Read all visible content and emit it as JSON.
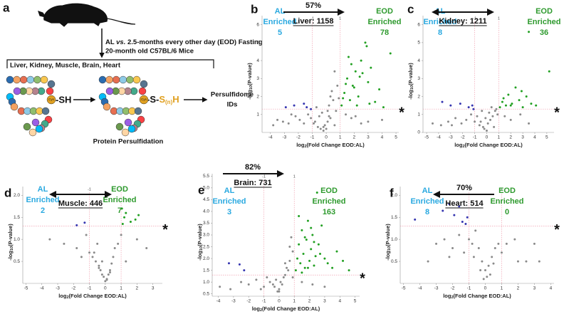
{
  "schematic": {
    "panel": "a",
    "line1_parts": [
      "AL ",
      "vs.",
      " 2.5-months every other day (EOD) Fasting"
    ],
    "line2": "20-month old C57BL/6 Mice",
    "tissues": "Liver, Kidney, Muscle, Brain, Heart",
    "thiol": "-SH",
    "persulfide_parts": [
      "-S-",
      "S",
      "(n)",
      "H"
    ],
    "cys": "Cys",
    "caption": "Protein Persulfidation",
    "output": [
      "Persulfidome",
      "IDs"
    ]
  },
  "chart_data": [
    {
      "type": "scatter",
      "panel": "b",
      "title": "Liver: 1158",
      "percent": "57%",
      "arrow": "right",
      "left_annotation": [
        "AL",
        "Enriched"
      ],
      "left_count": 5,
      "right_annotation": [
        "EOD",
        "Enriched"
      ],
      "right_count": 78,
      "xlabel_parts": [
        "log",
        "2",
        "(Fold Change EOD:AL)"
      ],
      "ylabel_parts": [
        "-log",
        "10",
        "(P-value)"
      ],
      "significance_marker": "*",
      "thresholds": {
        "x": [
          -1,
          1
        ],
        "y": 1.3,
        "color": "#f0a0b0"
      },
      "xlim": [
        -4.6,
        5.2
      ],
      "ylim": [
        0,
        6.5
      ],
      "xticks": [
        -4,
        -3,
        -2,
        -1,
        0,
        1,
        2,
        3,
        4,
        5
      ],
      "yticks": [
        1,
        2,
        3,
        4,
        5,
        6
      ],
      "series": [
        {
          "color": "#8a8a8a",
          "x": [
            -3.8,
            -3.1,
            -2.7,
            -2.2,
            -1.9,
            -1.6,
            -1.3,
            -1.1,
            -0.8,
            -0.6,
            -0.4,
            -0.3,
            -0.2,
            -0.1,
            0,
            0.1,
            0.2,
            0.3,
            0.4,
            0.5,
            0.6,
            0.7,
            0.8,
            0.9,
            -0.5,
            -0.7,
            0.3,
            0.1,
            -2.5,
            -3.5,
            2.1,
            3.0,
            4.0,
            -0.9,
            0.6,
            0.2,
            -0.2,
            1.4,
            1.8,
            2.5
          ],
          "values": [
            0.4,
            0.6,
            0.5,
            0.9,
            0.7,
            0.5,
            1.0,
            0.8,
            0.6,
            0.3,
            0.2,
            1.1,
            0.1,
            0.4,
            0.2,
            0.6,
            1.5,
            2.0,
            2.3,
            1.8,
            3.4,
            1.2,
            2.6,
            1.9,
            0.9,
            1.4,
            0.8,
            1.2,
            1.0,
            0.7,
            0.9,
            0.6,
            0.7,
            0.5,
            0.4,
            0.9,
            0.3,
            1.0,
            0.8,
            0.5
          ]
        },
        {
          "color": "#22a022",
          "x": [
            1.1,
            1.3,
            1.5,
            1.7,
            1.9,
            2.1,
            2.3,
            2.5,
            2.8,
            3.0,
            3.2,
            3.5,
            3.8,
            4.1,
            4.6,
            1.2,
            1.6,
            2.0,
            2.6,
            3.1,
            1.4,
            2.2,
            2.9,
            1.8,
            2.4
          ],
          "values": [
            1.5,
            2.2,
            3.0,
            1.8,
            2.6,
            3.4,
            2.0,
            4.0,
            5.0,
            2.8,
            3.6,
            1.7,
            2.4,
            1.4,
            4.4,
            1.9,
            4.2,
            2.5,
            3.3,
            1.6,
            2.7,
            1.5,
            4.8,
            3.8,
            3.1
          ]
        },
        {
          "color": "#3535b0",
          "x": [
            -2.9,
            -2.3,
            -1.6,
            -1.4,
            -1.1
          ],
          "values": [
            1.4,
            1.5,
            1.6,
            1.4,
            1.3
          ]
        }
      ]
    },
    {
      "type": "scatter",
      "panel": "c",
      "title": "Kidney: 1211",
      "arrow": "both",
      "left_annotation": [
        "AL",
        "Enriched"
      ],
      "left_count": 8,
      "right_annotation": [
        "EOD",
        "Enriched"
      ],
      "right_count": 36,
      "xlabel_parts": [
        "log",
        "2",
        "(Fold Change EOD:AL)"
      ],
      "ylabel_parts": [
        "-log",
        "10",
        "(P-value)"
      ],
      "significance_marker": "*",
      "thresholds": {
        "x": [
          -1,
          1
        ],
        "y": 1.3,
        "color": "#f0a0b0"
      },
      "xlim": [
        -5.3,
        5.6
      ],
      "ylim": [
        0,
        6.5
      ],
      "xticks": [
        -5,
        -4,
        -3,
        -2,
        -1,
        0,
        1,
        2,
        3,
        4,
        5
      ],
      "yticks": [
        0,
        1,
        2,
        3,
        4,
        5,
        6
      ],
      "series": [
        {
          "color": "#8a8a8a",
          "x": [
            -4.5,
            -3.8,
            -3.2,
            -2.6,
            -2.1,
            -1.7,
            -1.3,
            -1.0,
            -0.8,
            -0.6,
            -0.4,
            -0.3,
            -0.2,
            -0.1,
            0,
            0.1,
            0.2,
            0.3,
            0.4,
            0.5,
            0.7,
            0.9,
            -0.5,
            0.6,
            1.5,
            2.0,
            2.8,
            3.5,
            -2.9,
            0.8
          ],
          "values": [
            0.5,
            0.4,
            0.6,
            0.8,
            0.5,
            0.7,
            1.0,
            0.6,
            0.9,
            0.4,
            1.2,
            0.3,
            0.2,
            0.8,
            0.1,
            0.5,
            1.1,
            0.7,
            1.4,
            0.9,
            1.2,
            1.0,
            0.6,
            0.3,
            0.9,
            0.7,
            1.0,
            0.5,
            0.4,
            1.3
          ]
        },
        {
          "color": "#22a022",
          "x": [
            1.1,
            1.3,
            1.6,
            1.8,
            2.1,
            2.4,
            2.7,
            3.0,
            3.3,
            3.7,
            4.1,
            5.2,
            1.4,
            2.0,
            2.9,
            3.5
          ],
          "values": [
            1.4,
            1.7,
            1.5,
            2.1,
            1.6,
            2.5,
            1.8,
            1.4,
            2.0,
            1.6,
            1.5,
            3.4,
            1.9,
            1.5,
            2.3,
            5.6
          ]
        },
        {
          "color": "#3535b0",
          "x": [
            -3.7,
            -3.0,
            -2.2,
            -1.5,
            -1.2,
            -1.1
          ],
          "values": [
            1.7,
            1.5,
            1.6,
            1.4,
            1.5,
            1.3
          ]
        }
      ]
    },
    {
      "type": "scatter",
      "panel": "d",
      "title": "Muscle: 446",
      "arrow": "both",
      "left_annotation": [
        "AL",
        "Enriched"
      ],
      "left_count": 2,
      "right_annotation": [
        "EOD",
        "Enriched"
      ],
      "right_count": 7,
      "xlabel_parts": [
        "log",
        "2",
        "(Fold Change EOD:AL)"
      ],
      "ylabel_parts": [
        "-log",
        "10",
        "(P-value)"
      ],
      "significance_marker": "*",
      "thresholds": {
        "x": [
          -1,
          1
        ],
        "y": 1.3,
        "color": "#f0a0b0"
      },
      "xlim": [
        -5.2,
        3.6
      ],
      "ylim": [
        0,
        2.2
      ],
      "xticks": [
        -5,
        -4,
        -3,
        -2,
        -1,
        0,
        1,
        2,
        3
      ],
      "yticks": [
        0.5,
        {
          "value": 1,
          "label": "1.0"
        },
        1.5,
        {
          "value": 2,
          "label": "2.0"
        }
      ],
      "series": [
        {
          "color": "#8a8a8a",
          "x": [
            -3.5,
            -2.6,
            -1.8,
            -1.2,
            -1.0,
            -0.8,
            -0.6,
            -0.5,
            -0.4,
            -0.3,
            -0.2,
            -0.1,
            0,
            0.1,
            0.2,
            0.3,
            0.4,
            0.5,
            0.6,
            0.8,
            1.0,
            1.3,
            2.0,
            -0.7,
            -0.2,
            0.3,
            -0.4,
            0.1,
            -1.5,
            2.6
          ],
          "values": [
            1.0,
            0.9,
            0.8,
            1.1,
            0.7,
            0.6,
            0.5,
            0.9,
            0.4,
            0.3,
            0.2,
            0.15,
            0.05,
            0.1,
            0.2,
            0.3,
            0.45,
            0.6,
            0.8,
            0.9,
            1.1,
            0.5,
            1.0,
            0.7,
            0.5,
            0.25,
            0.35,
            0.08,
            0.6,
            0.8
          ]
        },
        {
          "color": "#22a022",
          "x": [
            1.05,
            1.2,
            1.3,
            1.6,
            1.9,
            2.1,
            1.1
          ],
          "values": [
            1.7,
            1.5,
            1.6,
            1.4,
            1.45,
            1.55,
            1.35
          ]
        },
        {
          "color": "#3535b0",
          "x": [
            -1.8,
            -1.3
          ],
          "values": [
            1.32,
            1.38
          ]
        }
      ]
    },
    {
      "type": "scatter",
      "panel": "e",
      "title": "Brain: 731",
      "percent": "82%",
      "arrow": "right",
      "left_annotation": [
        "AL",
        "Enriched"
      ],
      "left_count": 3,
      "right_annotation": [
        "EOD",
        "Enriched"
      ],
      "right_count": 163,
      "xlabel_parts": [
        "log",
        "2",
        "(Fold Change EOD:AL)"
      ],
      "ylabel_parts": [
        "-log",
        "10",
        "(P-value)"
      ],
      "significance_marker": "*",
      "thresholds": {
        "x": [
          -1,
          1
        ],
        "y": 1.3,
        "color": "#f0a0b0"
      },
      "xlim": [
        -4.4,
        5.3
      ],
      "ylim": [
        0.4,
        5.6
      ],
      "xticks": [
        -4,
        -3,
        -2,
        -1,
        0,
        1,
        2,
        3,
        4,
        5
      ],
      "yticks": [
        0.5,
        {
          "value": 1,
          "label": "1.0"
        },
        1.5,
        {
          "value": 2,
          "label": "2.0"
        },
        2.5,
        {
          "value": 3,
          "label": "3.0"
        },
        3.5,
        {
          "value": 4,
          "label": "4.0"
        },
        4.5,
        {
          "value": 5,
          "label": "5.0"
        },
        5.5
      ],
      "series": [
        {
          "color": "#8a8a8a",
          "x": [
            -3.9,
            -3.2,
            -2.5,
            -2.0,
            -1.5,
            -1.0,
            -0.8,
            -0.6,
            -0.4,
            -0.2,
            0,
            0.2,
            0.4,
            0.5,
            0.7,
            0.9,
            -0.3,
            0.1,
            0.3,
            0.6,
            0.8,
            -0.1,
            0.4,
            0.9,
            1.5,
            2.2,
            3.0,
            -1.2,
            0.0,
            0.7
          ],
          "values": [
            0.8,
            0.7,
            1.0,
            0.9,
            1.1,
            0.8,
            1.2,
            1.0,
            0.9,
            1.1,
            0.7,
            0.9,
            1.3,
            1.6,
            1.9,
            2.3,
            0.8,
            1.0,
            1.2,
            1.5,
            2.9,
            0.6,
            1.8,
            1.2,
            1.0,
            0.9,
            0.8,
            0.7,
            0.6,
            2.5
          ]
        },
        {
          "color": "#22a022",
          "x": [
            1.1,
            1.2,
            1.3,
            1.4,
            1.5,
            1.6,
            1.7,
            1.8,
            1.9,
            2.0,
            2.1,
            2.2,
            2.3,
            2.4,
            2.5,
            2.6,
            2.8,
            3.0,
            3.2,
            3.5,
            3.8,
            4.2,
            4.6,
            1.3,
            1.5,
            1.7,
            1.9,
            2.1,
            2.3,
            2.7
          ],
          "values": [
            1.5,
            2.0,
            2.6,
            1.8,
            3.2,
            2.2,
            1.6,
            2.8,
            3.6,
            1.9,
            2.4,
            3.0,
            1.7,
            2.1,
            4.8,
            2.6,
            3.4,
            2.0,
            1.8,
            1.6,
            2.3,
            1.9,
            1.5,
            3.8,
            1.4,
            2.9,
            1.6,
            3.3,
            2.7,
            2.2
          ]
        },
        {
          "color": "#3535b0",
          "x": [
            -3.3,
            -2.6,
            -2.3
          ],
          "values": [
            1.8,
            1.75,
            1.5
          ]
        }
      ]
    },
    {
      "type": "scatter",
      "panel": "f",
      "title": "Heart: 514",
      "percent": "70%",
      "arrow": "left",
      "left_annotation": [
        "AL",
        "Enriched"
      ],
      "left_count": 8,
      "right_annotation": [
        "EOD",
        "Enriched"
      ],
      "right_count": 0,
      "xlabel_parts": [
        "log",
        "2",
        "(Fold Change EOD:AL)"
      ],
      "ylabel_parts": [
        "-log",
        "10",
        "(P-value)"
      ],
      "significance_marker": "*",
      "thresholds": {
        "x": [
          -1,
          1
        ],
        "y": 1.3,
        "color": "#f0a0b0"
      },
      "xlim": [
        -5.2,
        4.2
      ],
      "ylim": [
        0,
        2.2
      ],
      "xticks": [
        -5,
        -4,
        -3,
        -2,
        -1,
        0,
        1,
        2,
        3,
        4
      ],
      "yticks": [
        0.5,
        {
          "value": 1,
          "label": "1.0"
        },
        1.5,
        {
          "value": 2,
          "label": "2.0"
        }
      ],
      "series": [
        {
          "color": "#8a8a8a",
          "x": [
            -3.5,
            -3.0,
            -2.5,
            -2.0,
            -1.6,
            -1.3,
            -1.0,
            -0.8,
            -0.6,
            -0.4,
            -0.2,
            0,
            0.2,
            0.4,
            0.6,
            0.8,
            1.0,
            1.3,
            1.8,
            2.5,
            3.0,
            3.3,
            -0.3,
            0.1,
            -0.7,
            0.3,
            -0.1,
            0.5,
            -2.2,
            2.0
          ],
          "values": [
            0.5,
            0.9,
            1.0,
            0.8,
            1.1,
            0.7,
            1.0,
            0.9,
            1.2,
            0.8,
            0.5,
            0.3,
            0.4,
            0.6,
            0.8,
            0.9,
            0.7,
            0.9,
            1.0,
            0.5,
            0.9,
            0.5,
            0.3,
            0.15,
            0.6,
            0.2,
            0.1,
            0.45,
            0.6,
            0.5
          ]
        },
        {
          "color": "#3535b0",
          "x": [
            -4.3,
            -2.6,
            -2.2,
            -1.9,
            -1.6,
            -1.4,
            -1.2,
            -1.1
          ],
          "values": [
            1.45,
            1.65,
            1.8,
            1.55,
            1.75,
            1.4,
            1.35,
            1.5
          ]
        }
      ]
    }
  ]
}
